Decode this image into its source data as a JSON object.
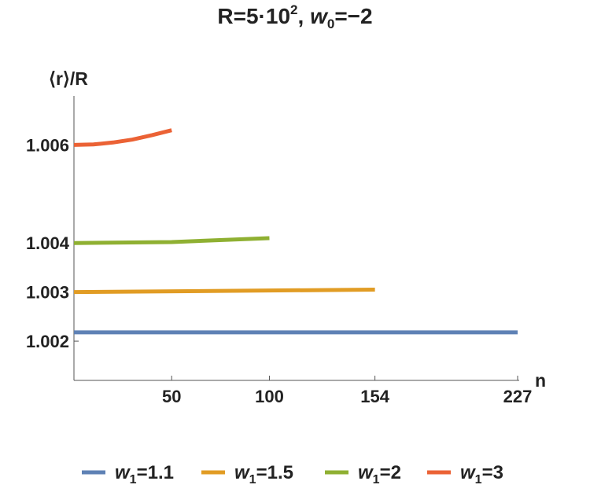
{
  "chart_data": {
    "type": "line",
    "title": {
      "prefix": "R=5·10",
      "exp": "2",
      "sep": ", ",
      "var": "w",
      "sub": "0",
      "suffix": "=−2"
    },
    "xlabel": "n",
    "ylabel": "⟨r⟩/R",
    "xlim": [
      0,
      227
    ],
    "ylim": [
      1.0012,
      1.007
    ],
    "xticks": [
      50,
      100,
      154,
      227
    ],
    "xtick_labels": [
      "50",
      "100",
      "154",
      "227"
    ],
    "yticks": [
      1.002,
      1.003,
      1.004,
      1.006
    ],
    "ytick_labels": [
      "1.002",
      "1.003",
      "1.004",
      "1.006"
    ],
    "series": [
      {
        "name": "w1=1.1",
        "legend": {
          "var": "w",
          "sub": "1",
          "value": "=1.1"
        },
        "color": "#5e81b5",
        "points": [
          [
            0,
            1.00218
          ],
          [
            227,
            1.00218
          ]
        ]
      },
      {
        "name": "w1=1.5",
        "legend": {
          "var": "w",
          "sub": "1",
          "value": "=1.5"
        },
        "color": "#e19c24",
        "points": [
          [
            0,
            1.003
          ],
          [
            154,
            1.00305
          ]
        ]
      },
      {
        "name": "w1=2",
        "legend": {
          "var": "w",
          "sub": "1",
          "value": "=2"
        },
        "color": "#8fb032",
        "points": [
          [
            0,
            1.004
          ],
          [
            50,
            1.00402
          ],
          [
            100,
            1.0041
          ]
        ]
      },
      {
        "name": "w1=3",
        "legend": {
          "var": "w",
          "sub": "1",
          "value": "=3"
        },
        "color": "#eb6235",
        "points": [
          [
            0,
            1.006
          ],
          [
            10,
            1.00601
          ],
          [
            20,
            1.00605
          ],
          [
            30,
            1.00611
          ],
          [
            40,
            1.0062
          ],
          [
            50,
            1.0063
          ]
        ]
      }
    ]
  }
}
